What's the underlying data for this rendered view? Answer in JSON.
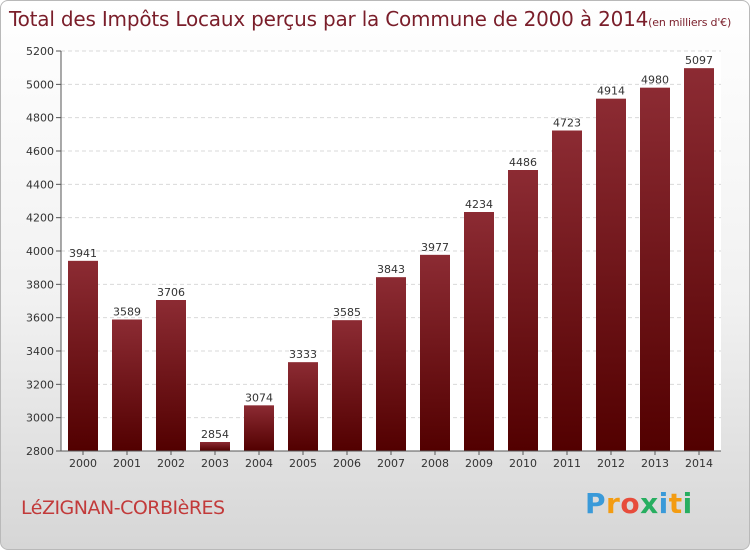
{
  "title": "Total des Impôts Locaux perçus par la Commune de 2000 à 2014",
  "unit_note": "(en milliers d'€)",
  "commune": "LéZIGNAN-CORBIèRES",
  "logo": {
    "letters": [
      "P",
      "r",
      "o",
      "x",
      "i",
      "t",
      "i"
    ],
    "colors": [
      "#3a9ad9",
      "#f39c12",
      "#e74c3c",
      "#27ae60",
      "#3a9ad9",
      "#f39c12",
      "#27ae60"
    ]
  },
  "chart_data": {
    "type": "bar",
    "title": "Total des Impôts Locaux perçus par la Commune de 2000 à 2014",
    "xlabel": "",
    "ylabel": "",
    "categories": [
      "2000",
      "2001",
      "2002",
      "2003",
      "2004",
      "2005",
      "2006",
      "2007",
      "2008",
      "2009",
      "2010",
      "2011",
      "2012",
      "2013",
      "2014"
    ],
    "values": [
      3941,
      3589,
      3706,
      2854,
      3074,
      3333,
      3585,
      3843,
      3977,
      4234,
      4486,
      4723,
      4914,
      4980,
      5097
    ],
    "ylim": [
      2800,
      5200
    ],
    "yticks": [
      2800,
      3000,
      3200,
      3400,
      3600,
      3800,
      4000,
      4200,
      4400,
      4600,
      4800,
      5000,
      5200
    ],
    "grid": true,
    "bar_color_top": "#8c2b33",
    "bar_color_bottom": "#520000"
  }
}
